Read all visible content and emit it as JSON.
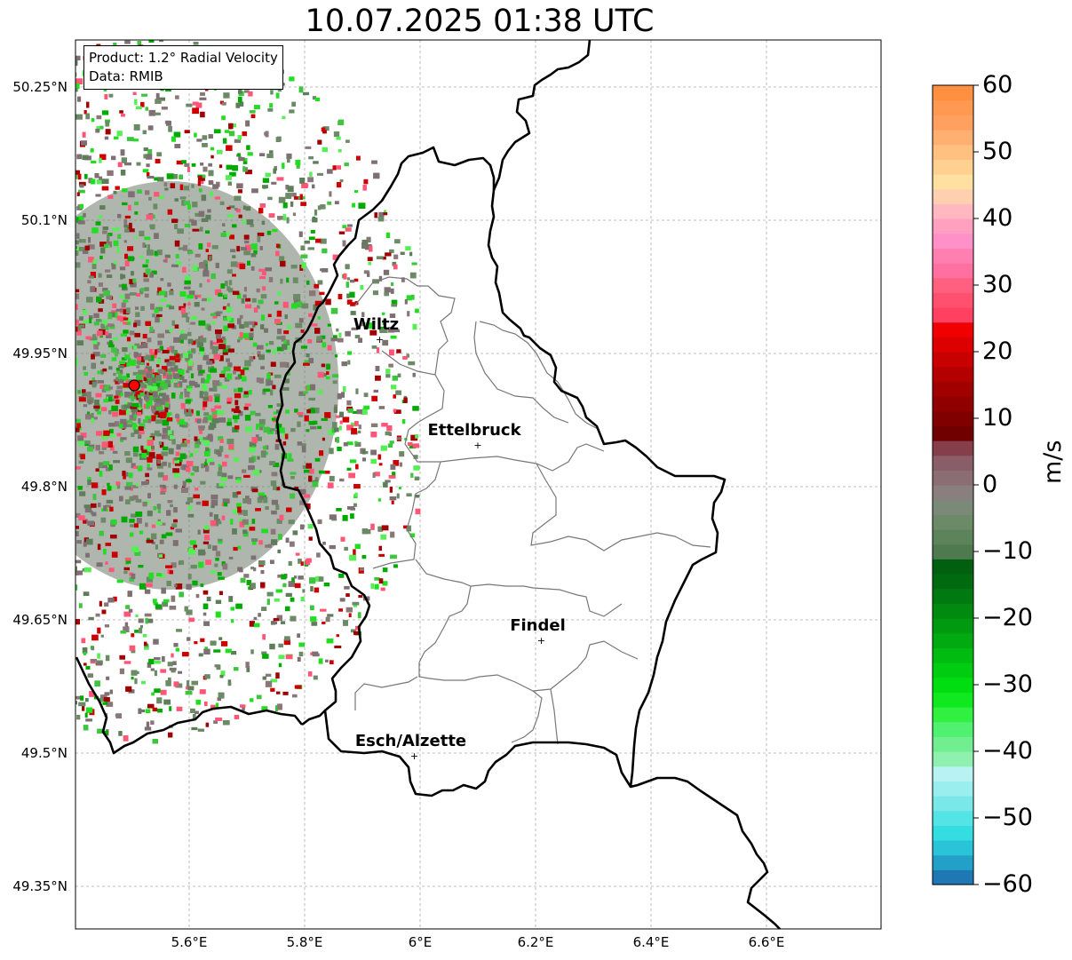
{
  "title": "10.07.2025 01:38 UTC",
  "info": {
    "product": "Product: 1.2° Radial Velocity",
    "data": "Data: RMIB"
  },
  "lat_ticks": [
    "50.25°N",
    "50.1°N",
    "49.95°N",
    "49.8°N",
    "49.65°N",
    "49.5°N",
    "49.35°N"
  ],
  "lon_ticks": [
    "5.6°E",
    "5.8°E",
    "6°E",
    "6.2°E",
    "6.4°E",
    "6.6°E"
  ],
  "cities": [
    {
      "name": "Wiltz",
      "lon": 5.93,
      "lat": 49.966
    },
    {
      "name": "Ettelbruck",
      "lon": 6.1,
      "lat": 49.847
    },
    {
      "name": "Findel",
      "lon": 6.21,
      "lat": 49.627
    },
    {
      "name": "Esch/Alzette",
      "lon": 5.99,
      "lat": 49.497
    }
  ],
  "radar_site": {
    "lon": 5.505,
    "lat": 49.914
  },
  "colorbar": {
    "unit": "m/s",
    "ticks": [
      "60",
      "50",
      "40",
      "30",
      "20",
      "10",
      "0",
      "−10",
      "−20",
      "−30",
      "−40",
      "−50",
      "−60"
    ],
    "min": -60,
    "max": 60,
    "colors": [
      "#1f78b4",
      "#22a0c8",
      "#2ac4d8",
      "#33dde0",
      "#55e4e6",
      "#7ae8e8",
      "#9aeeee",
      "#b8f2f2",
      "#90f0b0",
      "#70ee90",
      "#50f070",
      "#30f040",
      "#10e820",
      "#00dd10",
      "#00cc10",
      "#00bb10",
      "#00aa10",
      "#009a10",
      "#008a10",
      "#007a10",
      "#006a10",
      "#006010",
      "#4f7a4f",
      "#5d835b",
      "#6c8a68",
      "#7b8a78",
      "#8a7f7f",
      "#8a6e73",
      "#8a5e68",
      "#843f4a",
      "#700000",
      "#800000",
      "#900000",
      "#a00000",
      "#b40000",
      "#c80000",
      "#dc0000",
      "#f00000",
      "#ff4060",
      "#ff5070",
      "#ff6080",
      "#ff70a0",
      "#ff80b0",
      "#ff90c8",
      "#ffa0c0",
      "#ffb8c0",
      "#ffd0b0",
      "#ffe0a0",
      "#ffd090",
      "#ffc080",
      "#ffb070",
      "#ffa060",
      "#ff9850",
      "#ff9040"
    ]
  }
}
